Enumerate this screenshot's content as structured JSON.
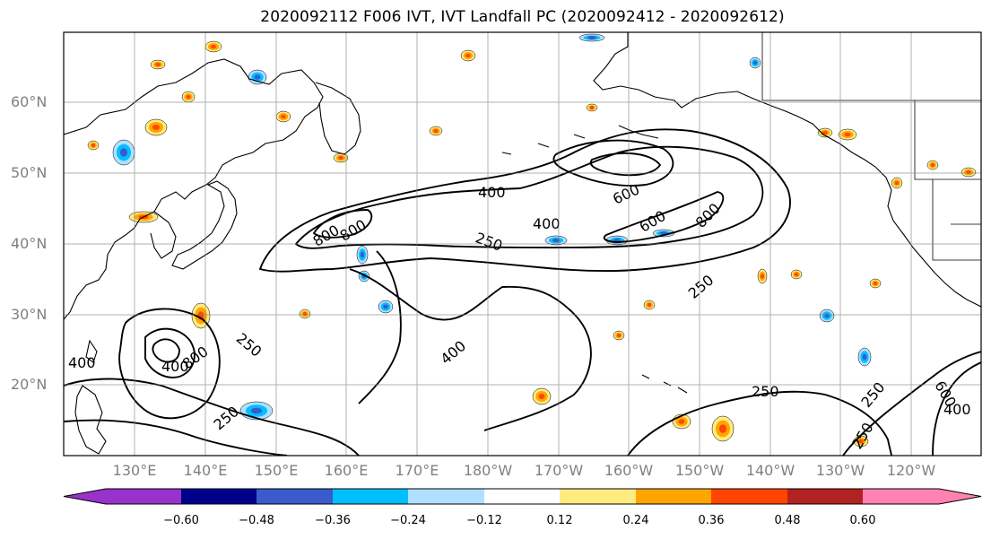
{
  "title": "2020092112 F006 IVT, IVT Landfall PC (2020092412 - 2020092612)",
  "lat_labels": [
    "20°N",
    "30°N",
    "40°N",
    "50°N",
    "60°N"
  ],
  "lon_labels": [
    "130°E",
    "140°E",
    "150°E",
    "160°E",
    "170°E",
    "180°W",
    "170°W",
    "160°W",
    "150°W",
    "140°W",
    "130°W",
    "120°W"
  ],
  "contour_labels": [
    "400",
    "600",
    "400",
    "250",
    "600",
    "800",
    "250",
    "800",
    "800",
    "400",
    "250",
    "400",
    "800",
    "400",
    "250",
    "250",
    "250",
    "250",
    "600",
    "400"
  ],
  "colorbar": {
    "ticks": [
      "−0.60",
      "−0.48",
      "−0.36",
      "−0.24",
      "−0.12",
      "0.12",
      "0.24",
      "0.36",
      "0.48",
      "0.60"
    ],
    "colors": [
      "#9932cc",
      "#00008b",
      "#3a5acd",
      "#00bfff",
      "#b0e0ff",
      "#ffffff",
      "#ffeb80",
      "#ffa500",
      "#ff4500",
      "#b22222",
      "#ff82b0"
    ]
  },
  "chart_data": {
    "type": "heatmap",
    "title": "2020092112 F006 IVT, IVT Landfall PC (2020092412 - 2020092612)",
    "fields": [
      "IVT contours",
      "IVT Landfall PC shading"
    ],
    "contour_levels": [
      250,
      400,
      600,
      800
    ],
    "x_ticks": [
      "130°E",
      "140°E",
      "150°E",
      "160°E",
      "170°E",
      "180°W",
      "170°W",
      "160°W",
      "150°W",
      "140°W",
      "130°W",
      "120°W"
    ],
    "y_ticks": [
      "20°N",
      "30°N",
      "40°N",
      "50°N",
      "60°N"
    ],
    "lon_range": [
      120,
      250
    ],
    "lat_range": [
      10,
      70
    ],
    "colorbar_boundaries": [
      -0.6,
      -0.48,
      -0.36,
      -0.24,
      -0.12,
      0.12,
      0.24,
      0.36,
      0.48,
      0.6
    ],
    "colorbar_extend": "both",
    "grid": true
  }
}
